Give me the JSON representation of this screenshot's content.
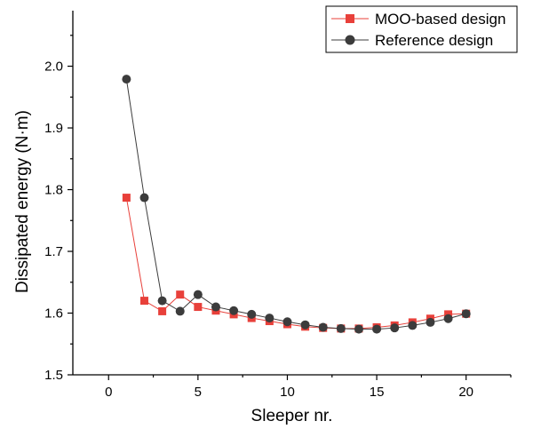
{
  "chart_data": {
    "type": "line",
    "xlabel": "Sleeper nr.",
    "ylabel": "Dissipated energy (N·m)",
    "xlim": [
      -2,
      22.5
    ],
    "ylim": [
      1.5,
      2.09
    ],
    "xticks": [
      0,
      5,
      10,
      15,
      20
    ],
    "yticks": [
      1.5,
      1.6,
      1.7,
      1.8,
      1.9,
      2.0
    ],
    "xtick_labels": [
      "0",
      "5",
      "10",
      "15",
      "20"
    ],
    "ytick_labels": [
      "1.5",
      "1.6",
      "1.7",
      "1.8",
      "1.9",
      "2.0"
    ],
    "grid": false,
    "legend_position": "top-right",
    "x": [
      1,
      2,
      3,
      4,
      5,
      6,
      7,
      8,
      9,
      10,
      11,
      12,
      13,
      14,
      15,
      16,
      17,
      18,
      19,
      20
    ],
    "series": [
      {
        "name": "MOO-based design",
        "color": "#e8403a",
        "marker": "square",
        "values": [
          1.787,
          1.62,
          1.603,
          1.63,
          1.61,
          1.604,
          1.598,
          1.592,
          1.587,
          1.582,
          1.578,
          1.576,
          1.575,
          1.575,
          1.577,
          1.58,
          1.585,
          1.591,
          1.598,
          1.599
        ]
      },
      {
        "name": "Reference design",
        "color": "#3c3c3c",
        "marker": "circle",
        "values": [
          1.979,
          1.787,
          1.62,
          1.603,
          1.63,
          1.61,
          1.604,
          1.598,
          1.592,
          1.586,
          1.581,
          1.577,
          1.575,
          1.574,
          1.574,
          1.576,
          1.58,
          1.585,
          1.591,
          1.599
        ]
      }
    ]
  }
}
